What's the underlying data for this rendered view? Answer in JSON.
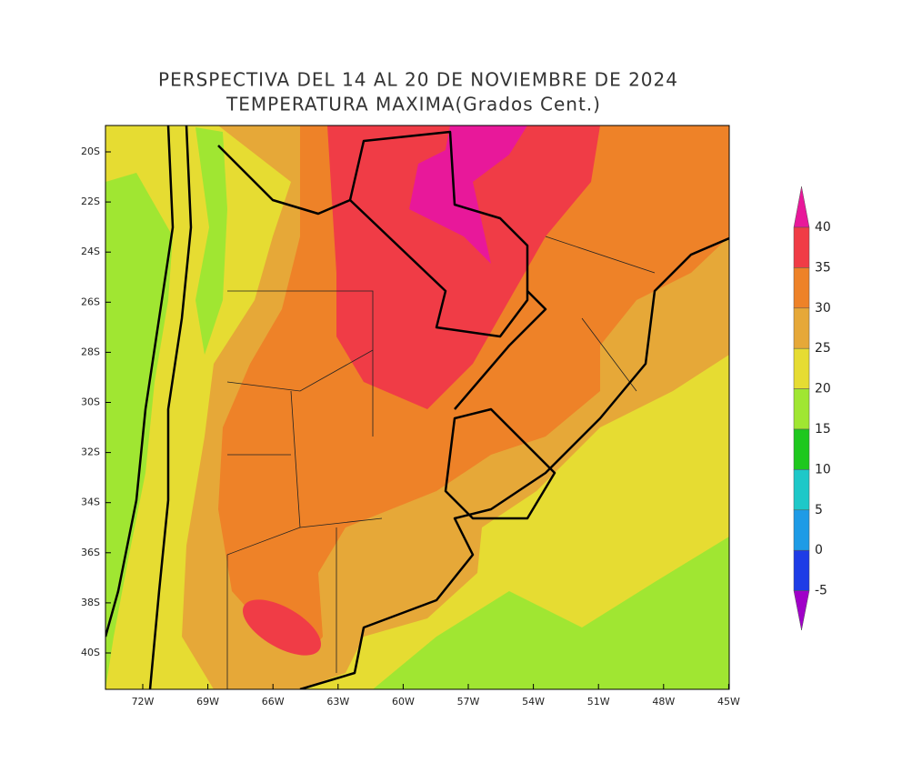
{
  "title": [
    "PERSPECTIVA DEL 14 AL 20 DE NOVIEMBRE DE 2024",
    "TEMPERATURA MAXIMA(Grados Cent.)"
  ],
  "map": {
    "lat_ticks": [
      "20S",
      "22S",
      "24S",
      "26S",
      "28S",
      "30S",
      "32S",
      "34S",
      "36S",
      "38S",
      "40S"
    ],
    "lon_ticks": [
      "72W",
      "69W",
      "66W",
      "63W",
      "60W",
      "57W",
      "54W",
      "51W",
      "48W",
      "45W"
    ]
  },
  "colorbar": {
    "levels": [
      40,
      35,
      30,
      25,
      20,
      15,
      10,
      5,
      0,
      -5
    ],
    "colors": [
      "#e8189a",
      "#f03c46",
      "#ee8228",
      "#e6a838",
      "#e6dc32",
      "#a0e632",
      "#1ec81e",
      "#1ec8c8",
      "#1e9be6",
      "#1e3ce6",
      "#a000c8"
    ]
  }
}
